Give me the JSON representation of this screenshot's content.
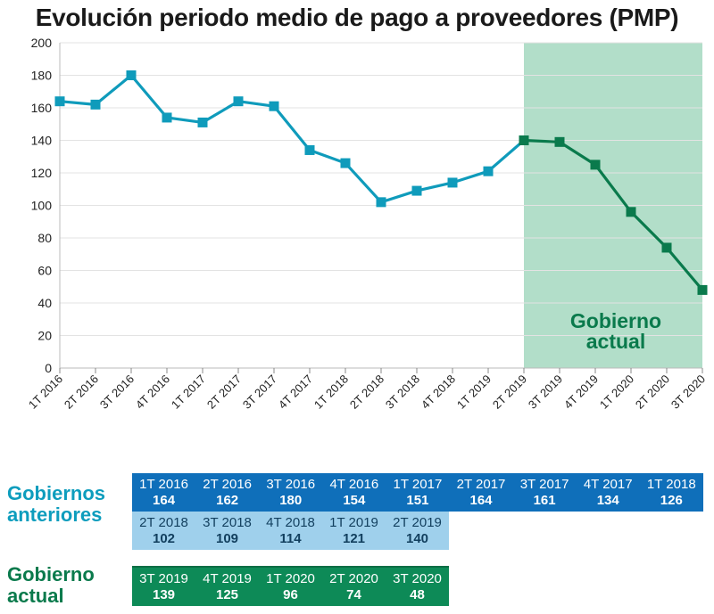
{
  "title": "Evolución periodo medio de pago a proveedores (PMP)",
  "colors": {
    "previous_line": "#0f9bbb",
    "current_line": "#0a7a4c",
    "current_band": "#b2dec9",
    "row_prev_dark": "#0f6fba",
    "row_prev_light": "#9fd0ec",
    "row_current": "#0d8a57"
  },
  "chart_data": {
    "type": "line",
    "title": "Evolución periodo medio de pago a proveedores (PMP)",
    "categories": [
      "1T 2016",
      "2T 2016",
      "3T 2016",
      "4T 2016",
      "1T 2017",
      "2T 2017",
      "3T 2017",
      "4T 2017",
      "1T 2018",
      "2T 2018",
      "3T 2018",
      "4T 2018",
      "1T 2019",
      "2T 2019",
      "3T 2019",
      "4T 2019",
      "1T 2020",
      "2T 2020",
      "3T 2020"
    ],
    "series": [
      {
        "name": "Gobiernos anteriores",
        "values": [
          164,
          162,
          180,
          154,
          151,
          164,
          161,
          134,
          126,
          102,
          109,
          114,
          121,
          140,
          null,
          null,
          null,
          null,
          null
        ]
      },
      {
        "name": "Gobierno actual",
        "values": [
          null,
          null,
          null,
          null,
          null,
          null,
          null,
          null,
          null,
          null,
          null,
          null,
          null,
          140,
          139,
          125,
          96,
          74,
          48
        ]
      }
    ],
    "yticks": [
      0,
      20,
      40,
      60,
      80,
      100,
      120,
      140,
      160,
      180,
      200
    ],
    "ylim": [
      0,
      200
    ],
    "grid": true,
    "annotation": {
      "text_line1": "Gobierno",
      "text_line2": "actual",
      "from_category": "2T 2019",
      "to_category": "3T 2020"
    }
  },
  "tables": {
    "previous_label_line1": "Gobiernos",
    "previous_label_line2": "anteriores",
    "current_label_line1": "Gobierno",
    "current_label_line2": "actual",
    "previous_row1": [
      {
        "q": "1T 2016",
        "v": "164"
      },
      {
        "q": "2T 2016",
        "v": "162"
      },
      {
        "q": "3T 2016",
        "v": "180"
      },
      {
        "q": "4T 2016",
        "v": "154"
      },
      {
        "q": "1T 2017",
        "v": "151"
      },
      {
        "q": "2T 2017",
        "v": "164"
      },
      {
        "q": "3T 2017",
        "v": "161"
      },
      {
        "q": "4T 2017",
        "v": "134"
      },
      {
        "q": "1T 2018",
        "v": "126"
      }
    ],
    "previous_row2": [
      {
        "q": "2T 2018",
        "v": "102"
      },
      {
        "q": "3T 2018",
        "v": "109"
      },
      {
        "q": "4T 2018",
        "v": "114"
      },
      {
        "q": "1T 2019",
        "v": "121"
      },
      {
        "q": "2T 2019",
        "v": "140"
      }
    ],
    "current_row": [
      {
        "q": "3T 2019",
        "v": "139"
      },
      {
        "q": "4T 2019",
        "v": "125"
      },
      {
        "q": "1T 2020",
        "v": "96"
      },
      {
        "q": "2T 2020",
        "v": "74"
      },
      {
        "q": "3T 2020",
        "v": "48"
      }
    ]
  }
}
